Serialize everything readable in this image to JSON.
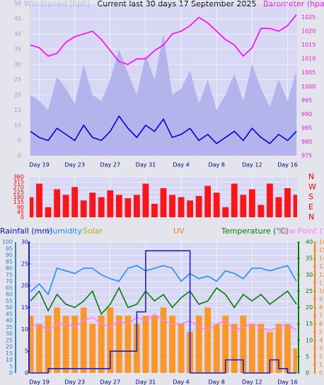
{
  "chart_data": [
    {
      "type": "line",
      "title": "Current last 30 days 17 September 2025",
      "y_label": "Windspeed (kph)",
      "y2_label": "Barometer (hpa)",
      "categories": [
        null,
        "Day 19",
        null,
        null,
        null,
        "Day 23",
        null,
        null,
        null,
        "Day 27",
        null,
        null,
        null,
        "Day 31",
        null,
        null,
        null,
        "Day 4",
        null,
        null,
        null,
        "Day 8",
        null,
        null,
        null,
        "Day 12",
        null,
        null,
        null,
        "Day 16",
        null
      ],
      "ylim": [
        0,
        50
      ],
      "yticks": [
        0,
        5,
        10,
        15,
        20,
        25,
        30,
        35,
        40,
        45,
        50
      ],
      "y2lim": [
        975,
        1030
      ],
      "y2ticks": [
        975,
        980,
        985,
        990,
        995,
        1000,
        1005,
        1010,
        1015,
        1020,
        1025
      ],
      "grid": true,
      "series": [
        {
          "style": "area",
          "color": "#b4b4ec",
          "values": [
            20,
            18,
            15,
            26,
            22,
            17,
            30,
            20,
            18,
            25,
            35,
            27,
            20,
            33,
            25,
            40,
            20,
            22,
            28,
            17,
            25,
            15,
            20,
            27,
            18,
            30,
            22,
            16,
            25,
            18,
            28
          ]
        },
        {
          "style": "line",
          "color": "#0000e0",
          "values": [
            8,
            6,
            5,
            9,
            7,
            5,
            10,
            6,
            5,
            8,
            13,
            9,
            6,
            10,
            8,
            12,
            6,
            7,
            9,
            5,
            7,
            4,
            6,
            8,
            5,
            9,
            6,
            4,
            7,
            5,
            8
          ]
        },
        {
          "style": "line",
          "color": "#ff00ff",
          "axis": "y2",
          "values": [
            1015,
            1014,
            1011,
            1012,
            1016,
            1018,
            1019,
            1020,
            1017,
            1013,
            1009,
            1008,
            1010,
            1010,
            1013,
            1015,
            1019,
            1020,
            1022,
            1025,
            1023,
            1020,
            1017,
            1015,
            1011,
            1014,
            1021,
            1021,
            1020,
            1022,
            1026
          ]
        }
      ]
    },
    {
      "type": "line",
      "ylim": [
        0,
        360
      ],
      "yticks": [
        0,
        45,
        90,
        135,
        180,
        225,
        270,
        315,
        360
      ],
      "compass": [
        "N",
        "W",
        "S",
        "E",
        "N"
      ],
      "grid": true,
      "series": [
        {
          "style": "bars",
          "color": "#ff0000",
          "values": [
            180,
            300,
            90,
            250,
            200,
            270,
            150,
            220,
            180,
            240,
            200,
            170,
            200,
            300,
            120,
            260,
            200,
            180,
            150,
            190,
            280,
            220,
            90,
            300,
            200,
            250,
            110,
            300,
            180,
            260,
            200
          ]
        }
      ]
    },
    {
      "type": "line",
      "legend": [
        {
          "text": "Rainfall (mm)",
          "color": "#1010c0"
        },
        {
          "text": "Humidity",
          "color": "#1e90ff"
        },
        {
          "text": "Solar",
          "color": "#b0b000"
        },
        {
          "text": "UV",
          "color": "#ff8000"
        },
        {
          "text": "Temperature (°C)",
          "color": "#008000"
        },
        {
          "text": "Dew Point (°C",
          "color": "#ff80ff"
        }
      ],
      "categories": [
        null,
        "Day 19",
        null,
        null,
        null,
        "Day 23",
        null,
        null,
        null,
        "Day 27",
        null,
        null,
        null,
        "Day 31",
        null,
        null,
        null,
        "Day 4",
        null,
        null,
        null,
        "Day 8",
        null,
        null,
        null,
        "Day 12",
        null,
        null,
        null,
        "Day 16",
        null
      ],
      "ylim": [
        0,
        100
      ],
      "yticks": [
        0,
        5,
        10,
        15,
        20,
        25,
        30,
        35,
        40,
        45,
        50,
        55,
        60,
        65,
        70,
        75,
        80,
        85,
        90,
        95,
        100
      ],
      "y2lim": [
        0,
        30
      ],
      "y2ticks": [
        0,
        5,
        10,
        15,
        20,
        25,
        30
      ],
      "y3lim": [
        0,
        40
      ],
      "y3ticks": [
        0,
        5,
        10,
        15,
        20,
        25,
        30,
        35,
        40
      ],
      "y4lim": [
        0,
        16
      ],
      "y4ticks": [
        0,
        1,
        2,
        3,
        4,
        5,
        6,
        7,
        8,
        9,
        10,
        11,
        12,
        13,
        14,
        15,
        16
      ],
      "grid": true,
      "series": [
        {
          "style": "bars",
          "color": "#ff9010",
          "axis": "y4",
          "values": [
            7,
            6,
            7,
            8,
            7,
            7,
            8,
            6,
            7,
            8,
            7,
            7,
            6,
            7,
            7,
            8,
            7,
            6,
            5,
            7,
            8,
            6,
            7,
            6,
            7,
            6,
            6,
            5,
            6,
            6,
            3
          ]
        },
        {
          "style": "line",
          "color": "#1e90ff",
          "values": [
            62,
            68,
            60,
            80,
            78,
            76,
            80,
            80,
            75,
            72,
            70,
            80,
            82,
            78,
            80,
            82,
            80,
            70,
            76,
            72,
            74,
            70,
            78,
            76,
            72,
            80,
            80,
            78,
            80,
            82,
            70
          ]
        },
        {
          "style": "line",
          "color": "#ff80ff",
          "axis": "y3",
          "values": [
            14,
            15,
            13,
            15,
            15,
            14,
            16,
            17,
            15,
            14,
            16,
            15,
            17,
            16,
            18,
            16,
            15,
            15,
            16,
            14,
            13,
            15,
            16,
            13,
            14,
            15,
            14,
            13,
            14,
            15,
            13
          ]
        },
        {
          "style": "line",
          "color": "#008000",
          "axis": "y3",
          "values": [
            22,
            25,
            19,
            24,
            21,
            20,
            22,
            25,
            18,
            21,
            26,
            20,
            21,
            25,
            22,
            24,
            20,
            23,
            25,
            21,
            22,
            26,
            24,
            20,
            24,
            22,
            24,
            21,
            23,
            25,
            21
          ]
        },
        {
          "style": "step",
          "color": "#2020c0",
          "axis": "y2",
          "values": [
            0,
            0,
            1,
            1,
            1,
            1,
            1,
            1,
            1,
            5,
            5,
            5,
            14,
            28,
            28,
            28,
            28,
            28,
            0,
            0,
            0,
            0,
            3,
            3,
            0,
            0,
            0,
            3,
            1,
            0,
            0
          ]
        }
      ]
    }
  ]
}
